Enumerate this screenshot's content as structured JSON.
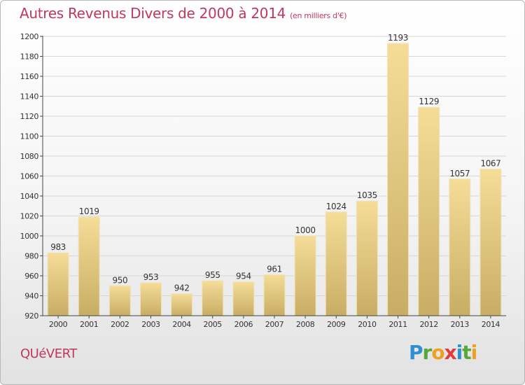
{
  "title": "Autres Revenus Divers de 2000 à 2014",
  "unit": "(en milliers d'€)",
  "city": "QUéVERT",
  "brand": {
    "letters": [
      "P",
      "r",
      "o",
      "x",
      "i",
      "t",
      "i"
    ],
    "colors": [
      "#2f8fd0",
      "#57a83a",
      "#f0a020",
      "#e23b3b",
      "#2f8fd0",
      "#57a83a",
      "#f0a020"
    ]
  },
  "colors": {
    "title": "#c0385c",
    "bar_top": "#f5dd98",
    "bar_bottom": "#c8ad64",
    "grid": "#d7d7d7",
    "text": "#333333"
  },
  "chart_data": {
    "type": "bar",
    "categories": [
      "2000",
      "2001",
      "2002",
      "2003",
      "2004",
      "2005",
      "2006",
      "2007",
      "2008",
      "2009",
      "2010",
      "2011",
      "2012",
      "2013",
      "2014"
    ],
    "values": [
      983,
      1019,
      950,
      953,
      942,
      955,
      954,
      961,
      1000,
      1024,
      1035,
      1193,
      1129,
      1057,
      1067
    ],
    "ylim": [
      920,
      1200
    ],
    "yticks": [
      920,
      940,
      960,
      980,
      1000,
      1020,
      1040,
      1060,
      1080,
      1100,
      1120,
      1140,
      1160,
      1180,
      1200
    ],
    "grid": true,
    "data_labels": true
  }
}
